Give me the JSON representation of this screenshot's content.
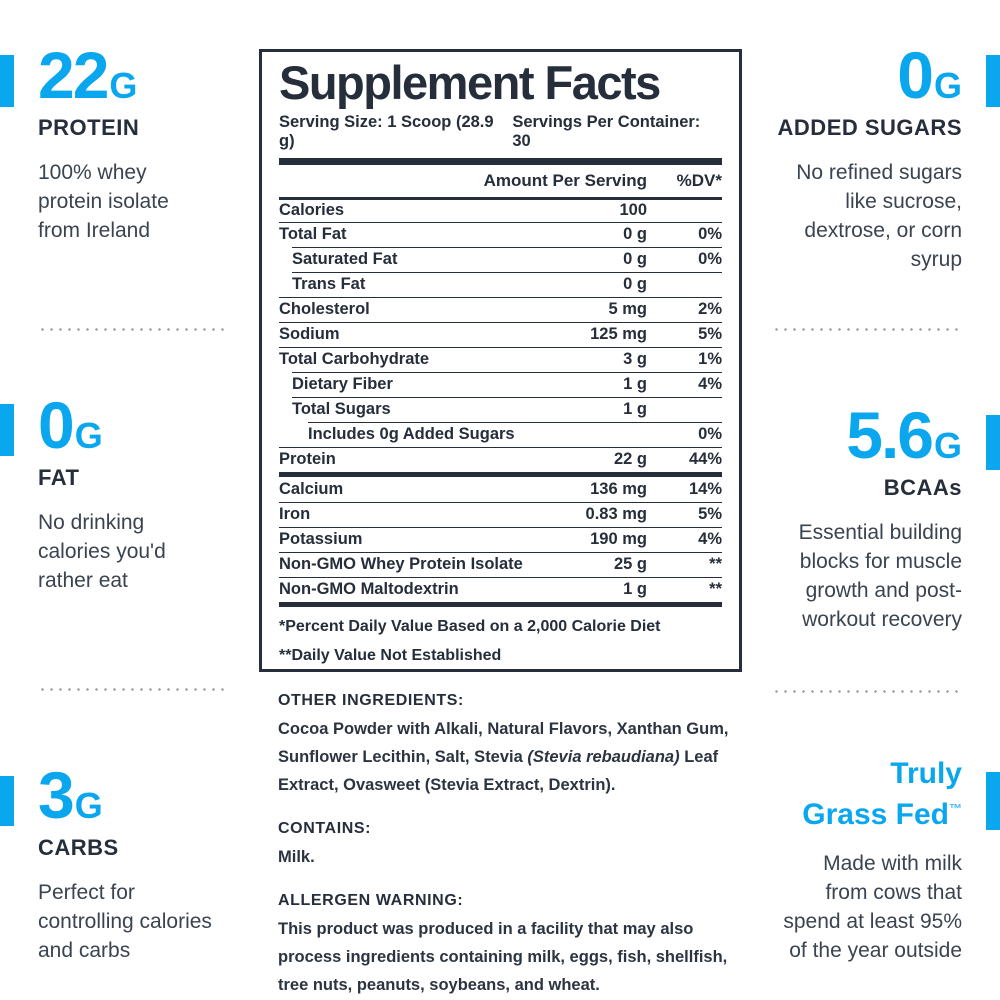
{
  "colors": {
    "accent": "#0aa7ee",
    "dark": "#252e3a",
    "body": "#3a4450",
    "dot": "#9aa0a8"
  },
  "callouts": {
    "left": [
      {
        "id": "protein",
        "value": "22",
        "unit": "G",
        "label": "PROTEIN",
        "description": "100% whey\nprotein isolate\nfrom Ireland"
      },
      {
        "id": "fat",
        "value": "0",
        "unit": "G",
        "label": "FAT",
        "description": "No drinking\ncalories you'd\nrather eat"
      },
      {
        "id": "carbs",
        "value": "3",
        "unit": "G",
        "label": "CARBS",
        "description": "Perfect for\ncontrolling calories\nand carbs"
      }
    ],
    "right": [
      {
        "id": "added-sugars",
        "value": "0",
        "unit": "G",
        "label": "ADDED SUGARS",
        "description": "No refined sugars\nlike sucrose,\ndextrose, or corn\nsyrup"
      },
      {
        "id": "bcaas",
        "value": "5.6",
        "unit": "G",
        "label": "BCAAs",
        "description": "Essential building\nblocks for muscle\ngrowth and post-\nworkout recovery"
      },
      {
        "id": "truly-grass-fed",
        "heading": "Truly\nGrass Fed",
        "trademark": "™",
        "description": "Made with milk\nfrom cows that\nspend at least 95%\nof the year outside"
      }
    ]
  },
  "label": {
    "title": "Supplement Facts",
    "serving_size": "Serving Size: 1 Scoop (28.9 g)",
    "servings_per_container": "Servings Per Container: 30",
    "col_amount": "Amount Per Serving",
    "col_dv": "%DV*",
    "rows": [
      {
        "name": "Calories",
        "amount": "100",
        "dv": "",
        "indent": 0
      },
      {
        "name": "Total Fat",
        "amount": "0 g",
        "dv": "0%",
        "indent": 0
      },
      {
        "name": "Saturated Fat",
        "amount": "0 g",
        "dv": "0%",
        "indent": 1
      },
      {
        "name": "Trans Fat",
        "amount": "0 g",
        "dv": "",
        "indent": 1
      },
      {
        "name": "Cholesterol",
        "amount": "5 mg",
        "dv": "2%",
        "indent": 0
      },
      {
        "name": "Sodium",
        "amount": "125 mg",
        "dv": "5%",
        "indent": 0
      },
      {
        "name": "Total Carbohydrate",
        "amount": "3 g",
        "dv": "1%",
        "indent": 0
      },
      {
        "name": "Dietary Fiber",
        "amount": "1 g",
        "dv": "4%",
        "indent": 1
      },
      {
        "name": "Total Sugars",
        "amount": "1 g",
        "dv": "",
        "indent": 1
      },
      {
        "name": "Includes 0g Added Sugars",
        "amount": "",
        "dv": "0%",
        "indent": 2
      },
      {
        "name": "Protein",
        "amount": "22 g",
        "dv": "44%",
        "indent": 0,
        "thick_after": true
      },
      {
        "name": "Calcium",
        "amount": "136 mg",
        "dv": "14%",
        "indent": 0
      },
      {
        "name": "Iron",
        "amount": "0.83 mg",
        "dv": "5%",
        "indent": 0
      },
      {
        "name": "Potassium",
        "amount": "190 mg",
        "dv": "4%",
        "indent": 0
      },
      {
        "name": "Non-GMO Whey Protein Isolate",
        "amount": "25 g",
        "dv": "**",
        "indent": 0
      },
      {
        "name": "Non-GMO Maltodextrin",
        "amount": "1 g",
        "dv": "**",
        "indent": 0,
        "thick_after": true
      }
    ],
    "footnotes": [
      "*Percent Daily Value Based on a 2,000 Calorie Diet",
      "**Daily Value Not Established"
    ]
  },
  "sections": {
    "other_ingredients": {
      "heading": "OTHER INGREDIENTS:",
      "text_before_italic": "Cocoa Powder with Alkali, Natural Flavors, Xanthan Gum, Sunflower Lecithin, Salt, Stevia ",
      "italic": "(Stevia rebaudiana)",
      "text_after_italic": " Leaf Extract, Ovasweet (Stevia Extract, Dextrin)."
    },
    "contains": {
      "heading": "CONTAINS:",
      "text": "Milk."
    },
    "allergen": {
      "heading": "ALLERGEN WARNING:",
      "text": "This product was produced in a facility that may also process ingredients containing milk, eggs, fish, shellfish, tree nuts, peanuts, soybeans, and wheat."
    }
  }
}
